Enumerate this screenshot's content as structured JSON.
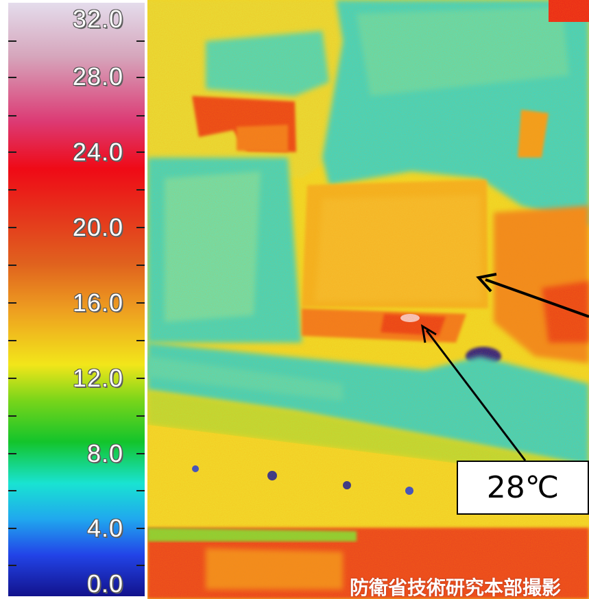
{
  "legend": {
    "labels": [
      "32.0",
      "28.0",
      "24.0",
      "20.0",
      "16.0",
      "12.0",
      "8.0",
      "4.0",
      "0.0"
    ],
    "colors": [
      "#e4dcec",
      "#d6a6bc",
      "#dc3a74",
      "#ef0a16",
      "#e0621e",
      "#eea020",
      "#f2e61a",
      "#13c42b",
      "#19e3d2",
      "#20a8ee",
      "#2244e8",
      "#12128c"
    ]
  },
  "thermal_image": {
    "palette": {
      "base": "#f2e22a",
      "cool": "#2ee0d0",
      "cold": "#1a1aa0",
      "warm": "#f08a20",
      "hot": "#e8201c",
      "hottest": "#f2c8d8"
    }
  },
  "annotation": {
    "callout_text": "28℃"
  },
  "credit": "防衛省技術研究本部撮影"
}
